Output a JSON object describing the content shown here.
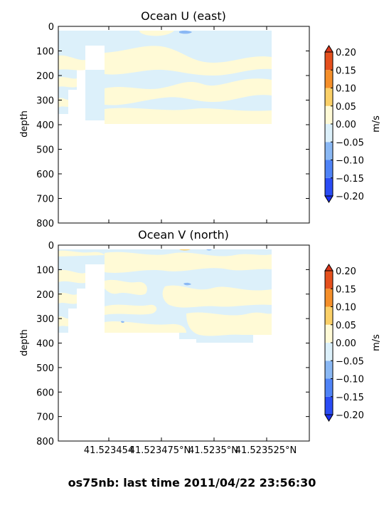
{
  "figure": {
    "suptitle": "os75nb: last time 2011/04/22 23:56:30"
  },
  "chart_data": [
    {
      "type": "heatmap",
      "title": "Ocean U (east)",
      "ylabel": "depth",
      "ylim": [
        800,
        0
      ],
      "yticks": [
        "0",
        "100",
        "200",
        "300",
        "400",
        "500",
        "600",
        "700",
        "800"
      ],
      "xticks": [],
      "colorbar": {
        "label": "m/s",
        "ticks": [
          "0.20",
          "0.15",
          "0.10",
          "0.05",
          "0.00",
          "−0.05",
          "−0.10",
          "−0.15",
          "−0.20"
        ],
        "levels": [
          -0.2,
          -0.15,
          -0.1,
          -0.05,
          0,
          0.05,
          0.1,
          0.15,
          0.2
        ],
        "colors": [
          "#2a4cf5",
          "#4f83f7",
          "#8ab8f4",
          "#dcf0fa",
          "#fffad6",
          "#fbd068",
          "#f58f2a",
          "#e5501d"
        ],
        "extend": "both"
      },
      "data_extent": {
        "depth_top": 20,
        "depth_bottom": 400
      },
      "dominant_levels": [
        -0.05,
        0.0,
        0.05
      ]
    },
    {
      "type": "heatmap",
      "title": "Ocean V (north)",
      "ylabel": "depth",
      "ylim": [
        800,
        0
      ],
      "yticks": [
        "0",
        "100",
        "200",
        "300",
        "400",
        "500",
        "600",
        "700",
        "800"
      ],
      "xticks": [
        "41.523454",
        "41.523475°N",
        "41.5235°N",
        "41.523525°N"
      ],
      "colorbar": {
        "label": "m/s",
        "ticks": [
          "0.20",
          "0.15",
          "0.10",
          "0.05",
          "0.00",
          "−0.05",
          "−0.10",
          "−0.15",
          "−0.20"
        ],
        "levels": [
          -0.2,
          -0.15,
          -0.1,
          -0.05,
          0,
          0.05,
          0.1,
          0.15,
          0.2
        ],
        "colors": [
          "#2a4cf5",
          "#4f83f7",
          "#8ab8f4",
          "#dcf0fa",
          "#fffad6",
          "#fbd068",
          "#f58f2a",
          "#e5501d"
        ],
        "extend": "both"
      },
      "data_extent": {
        "depth_top": 20,
        "depth_bottom": 400
      },
      "dominant_levels": [
        -0.05,
        0.0,
        0.05
      ]
    }
  ]
}
